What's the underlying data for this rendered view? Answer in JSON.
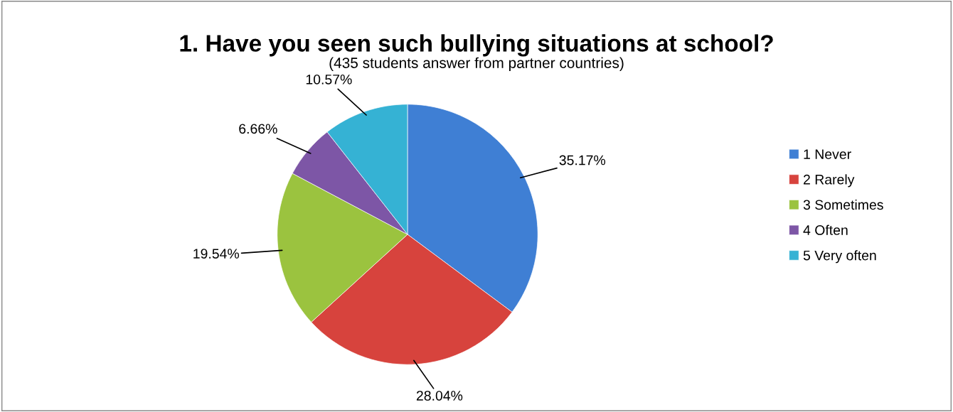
{
  "chart_data": {
    "type": "pie",
    "title": "1. Have you seen such bullying situations at school?",
    "subtitle": "(435 students answer from partner countries)",
    "categories": [
      "1 Never",
      "2 Rarely",
      "3 Sometimes",
      "4 Often",
      "5 Very often"
    ],
    "values": [
      35.17,
      28.04,
      19.54,
      6.66,
      10.57
    ],
    "value_labels": [
      "35.17%",
      "28.04%",
      "19.54%",
      "6.66%",
      "10.57%"
    ],
    "colors": [
      "#3f7fd4",
      "#d7433d",
      "#9bc33f",
      "#7d56a6",
      "#35b2d4"
    ],
    "legend": "right"
  }
}
